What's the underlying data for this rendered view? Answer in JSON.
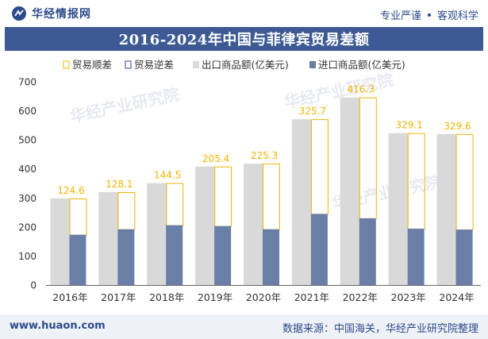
{
  "header": {
    "brand": "华经情报网",
    "tagline_left": "专业严谨",
    "tagline_right": "客观科学"
  },
  "footer": {
    "url": "www.huaon.com",
    "source": "数据来源：中国海关，华经产业研究院整理"
  },
  "colors": {
    "title_bg": "#3e5a94",
    "export": "#d9d9d9",
    "import": "#6a7fa6",
    "surplus": "#f0b400",
    "deficit": "#2b4a8b"
  },
  "chart_data": {
    "type": "bar",
    "title": "2016-2024年中国与菲律宾贸易差额",
    "categories": [
      "2016年",
      "2017年",
      "2018年",
      "2019年",
      "2020年",
      "2021年",
      "2022年",
      "2023年",
      "2024年"
    ],
    "series": [
      {
        "name": "出口商品额(亿美元)",
        "values": [
          298,
          320,
          351,
          408,
          418,
          571,
          646,
          523,
          520
        ]
      },
      {
        "name": "进口商品额(亿美元)",
        "values": [
          173,
          192,
          206,
          203,
          192,
          245,
          230,
          194,
          191
        ]
      }
    ],
    "balance": {
      "name": "贸易顺差",
      "values": [
        124.6,
        128.1,
        144.5,
        205.4,
        225.3,
        325.7,
        416.3,
        329.1,
        329.6
      ]
    },
    "deficit_legend": "贸易逆差",
    "ylim": [
      0,
      700
    ],
    "yticks": [
      0,
      100,
      200,
      300,
      400,
      500,
      600,
      700
    ],
    "legend_position": "top-center",
    "grid": false
  }
}
